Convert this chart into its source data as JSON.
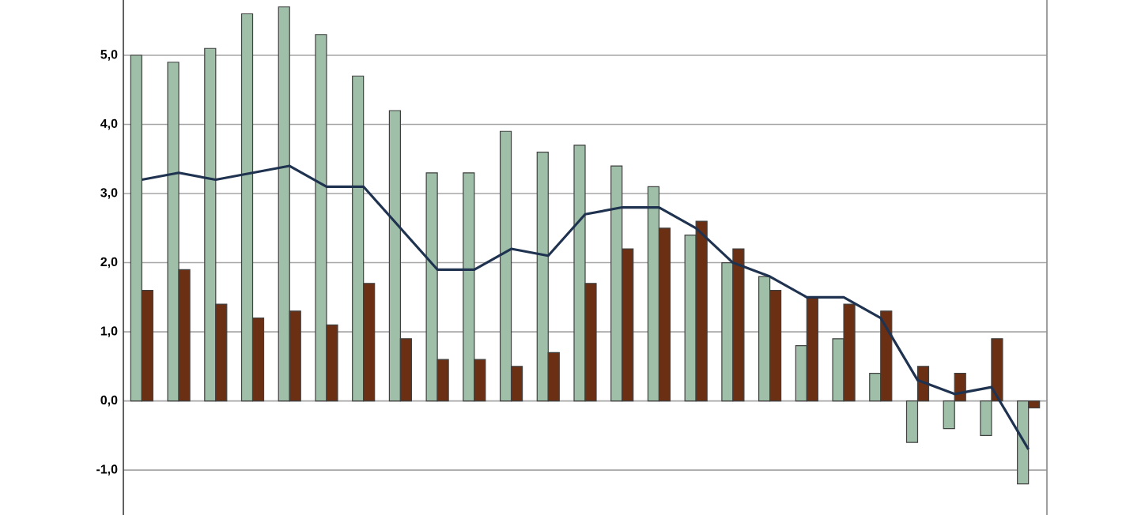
{
  "chart_data": {
    "type": "bar",
    "categories": [
      null,
      null,
      null,
      null,
      null,
      null,
      null,
      null,
      null,
      null,
      null,
      null,
      null,
      null,
      null,
      null,
      null,
      null,
      null,
      null,
      null,
      null,
      null,
      null,
      null
    ],
    "series": [
      {
        "color": "#9fbfa8",
        "values": [
          5.0,
          4.9,
          5.1,
          5.6,
          5.7,
          5.3,
          4.7,
          4.2,
          3.3,
          3.3,
          3.9,
          3.6,
          3.7,
          3.4,
          3.1,
          2.4,
          2.0,
          1.8,
          0.8,
          0.9,
          0.4,
          -0.6,
          -0.4,
          -0.5,
          -1.2
        ]
      },
      {
        "color": "#6b2f14",
        "values": [
          1.6,
          1.9,
          1.4,
          1.2,
          1.3,
          1.1,
          1.7,
          0.9,
          0.6,
          0.6,
          0.5,
          0.7,
          1.7,
          2.2,
          2.5,
          2.6,
          2.2,
          1.6,
          1.5,
          1.4,
          1.3,
          0.5,
          0.4,
          0.9,
          -0.1
        ]
      },
      {
        "type": "line",
        "color": "#1f3350",
        "values": [
          3.2,
          3.3,
          3.2,
          3.3,
          3.4,
          3.1,
          3.1,
          2.5,
          1.9,
          1.9,
          2.2,
          2.1,
          2.7,
          2.8,
          2.8,
          2.5,
          2.0,
          1.8,
          1.5,
          1.5,
          1.2,
          0.3,
          0.1,
          0.2,
          -0.7
        ]
      }
    ],
    "ylim": [
      -1.65,
      5.8
    ],
    "yticks": [
      {
        "value": -1,
        "label": "-1,0"
      },
      {
        "value": 0,
        "label": "0,0"
      },
      {
        "value": 1,
        "label": "1,0"
      },
      {
        "value": 2,
        "label": "2,0"
      },
      {
        "value": 3,
        "label": "3,0"
      },
      {
        "value": 4,
        "label": "4,0"
      },
      {
        "value": 5,
        "label": "5,0"
      }
    ],
    "grid": "y",
    "marker": "none",
    "line_style": "solid"
  }
}
